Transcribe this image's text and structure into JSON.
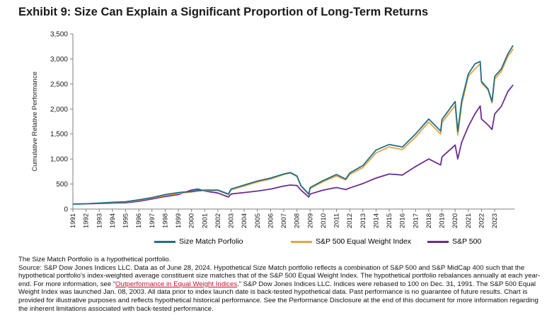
{
  "title": "Exhibit 9: Size Can Explain a Significant Proportion of Long-Term Returns",
  "chart_data": {
    "type": "line",
    "ylabel": "Cumulative Relative Performance",
    "xlabel": "",
    "ylim": [
      0,
      3500
    ],
    "yticks": [
      0,
      500,
      1000,
      1500,
      2000,
      2500,
      3000,
      3500
    ],
    "ytick_labels": [
      "0",
      "500",
      "1,000",
      "1,500",
      "2,000",
      "2,500",
      "3,000",
      "3,500"
    ],
    "xlim": [
      1991,
      2024.5
    ],
    "xticks": [
      1991,
      1992,
      1993,
      1994,
      1995,
      1996,
      1997,
      1998,
      1999,
      2000,
      2001,
      2002,
      2003,
      2004,
      2005,
      2006,
      2007,
      2008,
      2009,
      2010,
      2011,
      2012,
      2013,
      2014,
      2015,
      2016,
      2017,
      2018,
      2019,
      2020,
      2021,
      2022,
      2023
    ],
    "legend_position": "bottom",
    "grid": false,
    "colors": {
      "size_match": "#1f6f8b",
      "equal_weight": "#e8a33d",
      "sp500": "#6b2c91",
      "axis": "#7f7f7f"
    },
    "x": [
      1991,
      1992,
      1993,
      1994,
      1995,
      1996,
      1997,
      1998,
      1999,
      2000,
      2000.5,
      2001,
      2002,
      2002.8,
      2003,
      2004,
      2005,
      2006,
      2007,
      2007.5,
      2008,
      2008.3,
      2008.9,
      2009,
      2010,
      2011,
      2011.7,
      2012,
      2013,
      2014,
      2015,
      2016,
      2017,
      2018,
      2018.9,
      2019,
      2020,
      2020.2,
      2020.5,
      2021,
      2021.5,
      2021.9,
      2022,
      2022.5,
      2022.8,
      2023,
      2023.5,
      2024,
      2024.4
    ],
    "series": [
      {
        "name": "Size Match Porfolio",
        "color": "#1f6f8b",
        "values": [
          100,
          105,
          120,
          135,
          145,
          185,
          230,
          290,
          330,
          350,
          370,
          380,
          380,
          300,
          400,
          480,
          560,
          620,
          700,
          730,
          660,
          470,
          300,
          430,
          570,
          690,
          600,
          720,
          870,
          1180,
          1290,
          1240,
          1500,
          1800,
          1560,
          1790,
          2150,
          1550,
          2170,
          2700,
          2900,
          2950,
          2550,
          2400,
          2150,
          2650,
          2800,
          3100,
          3270
        ]
      },
      {
        "name": "S&P 500 Equal Weight Index",
        "color": "#e8a33d",
        "values": [
          100,
          104,
          118,
          130,
          140,
          175,
          220,
          270,
          310,
          340,
          360,
          370,
          370,
          290,
          385,
          460,
          540,
          600,
          690,
          720,
          650,
          460,
          290,
          410,
          550,
          660,
          580,
          690,
          830,
          1120,
          1240,
          1190,
          1440,
          1740,
          1500,
          1730,
          2070,
          1480,
          2090,
          2650,
          2800,
          2900,
          2520,
          2380,
          2120,
          2600,
          2750,
          3050,
          3200
        ]
      },
      {
        "name": "S&P 500",
        "color": "#6b2c91",
        "values": [
          100,
          105,
          112,
          118,
          125,
          155,
          200,
          250,
          290,
          380,
          400,
          360,
          320,
          240,
          300,
          330,
          360,
          400,
          460,
          480,
          470,
          380,
          240,
          300,
          380,
          430,
          390,
          420,
          510,
          620,
          700,
          680,
          850,
          1000,
          880,
          1040,
          1280,
          1000,
          1340,
          1650,
          1900,
          2060,
          1800,
          1680,
          1590,
          1900,
          2050,
          2350,
          2480
        ]
      }
    ]
  },
  "notes": {
    "line1": "The Size Match Portfolio is a hypothetical portfolio.",
    "line2": "Source: S&P Dow Jones Indices LLC.  Data as of June 28, 2024.  Hypothetical Size Match portfolio reflects a combination of S&P 500 and S&P MidCap 400 such that the hypothetical portfolio's index-weighted average constituent size matches that of the S&P 500 Equal Weight Index.  The hypothetical portfolio rebalances annually at each year-end.  For more information, see “",
    "link": "Outperformance in Equal Weight Indices",
    "line2_end": ".” S&P Dow Jones Indices LLC.  Indices were rebased to 100 on Dec. 31, 1991.  The S&P 500 Equal Weight Index was launched Jan. 08, 2003.  All data prior to index launch date is back-tested hypothetical data.  Past performance is no guarantee of future results.  Chart is provided for illustrative purposes and reflects hypothetical historical performance.  See the Performance Disclosure at the end of this document for more information regarding the inherent limitations associated with back-tested performance."
  }
}
